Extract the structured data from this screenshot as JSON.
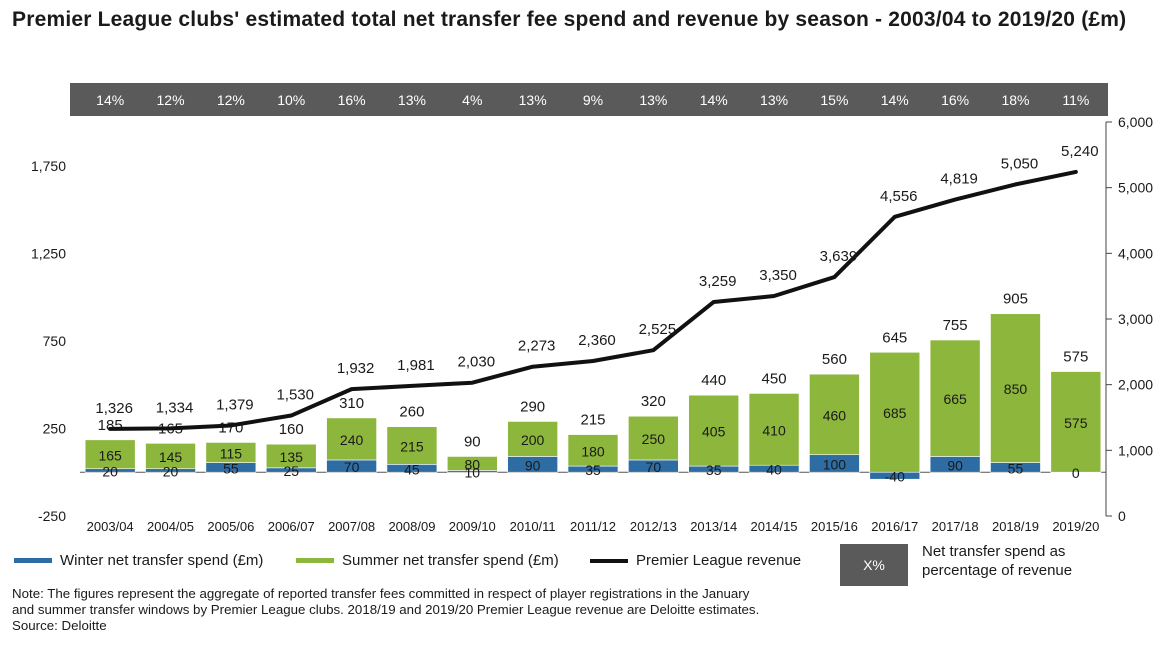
{
  "title": "Premier League clubs' estimated total net transfer fee spend and revenue by season - 2003/04 to 2019/20 (£m)",
  "colors": {
    "winter": "#2e6da4",
    "summer": "#8db63c",
    "revenue": "#111111",
    "pct_band": "#5a5a5a"
  },
  "legend": {
    "winter": "Winter net transfer spend (£m)",
    "summer": "Summer net transfer spend (£m)",
    "revenue": "Premier League revenue",
    "pct_marker": "X%",
    "pct_desc": "Net transfer spend as percentage of revenue"
  },
  "note": {
    "line1": "Note: The figures represent the aggregate of reported transfer fees committed in respect of player registrations in the January",
    "line2": "and summer transfer windows by Premier League clubs. 2018/19 and 2019/20 Premier League revenue are Deloitte estimates.",
    "line3": "Source: Deloitte"
  },
  "chart_data": {
    "type": "bar",
    "categories": [
      "2003/04",
      "2004/05",
      "2005/06",
      "2006/07",
      "2007/08",
      "2008/09",
      "2009/10",
      "2010/11",
      "2011/12",
      "2012/13",
      "2013/14",
      "2014/15",
      "2015/16",
      "2016/17",
      "2017/18",
      "2018/19",
      "2019/20"
    ],
    "series": [
      {
        "name": "Winter net transfer spend (£m)",
        "type": "bar",
        "values": [
          20,
          20,
          55,
          25,
          70,
          45,
          10,
          90,
          35,
          70,
          35,
          40,
          100,
          -40,
          90,
          55,
          0
        ]
      },
      {
        "name": "Summer net transfer spend (£m)",
        "type": "bar",
        "values": [
          165,
          145,
          115,
          135,
          240,
          215,
          80,
          200,
          180,
          250,
          405,
          410,
          460,
          685,
          665,
          850,
          575
        ]
      },
      {
        "name": "Premier League revenue",
        "type": "line",
        "axis": "right",
        "values": [
          1326,
          1334,
          1379,
          1530,
          1932,
          1981,
          2030,
          2273,
          2360,
          2525,
          3259,
          3350,
          3639,
          4556,
          4819,
          5050,
          5240
        ]
      }
    ],
    "totals": [
      185,
      165,
      170,
      160,
      310,
      260,
      90,
      290,
      215,
      320,
      440,
      450,
      560,
      645,
      755,
      905,
      575
    ],
    "pct_of_revenue": [
      "14%",
      "12%",
      "12%",
      "10%",
      "16%",
      "13%",
      "4%",
      "13%",
      "9%",
      "13%",
      "14%",
      "13%",
      "15%",
      "14%",
      "16%",
      "18%",
      "11%"
    ],
    "left_axis": {
      "range": [
        -250,
        2000
      ],
      "ticks": [
        -250,
        250,
        750,
        1250,
        1750
      ],
      "tick_labels": [
        "-250",
        "250",
        "750",
        "1,250",
        "1,750"
      ]
    },
    "right_axis": {
      "range": [
        0,
        6000
      ],
      "ticks": [
        0,
        1000,
        2000,
        3000,
        4000,
        5000,
        6000
      ],
      "tick_labels": [
        "0",
        "1,000",
        "2,000",
        "3,000",
        "4,000",
        "5,000",
        "6,000"
      ]
    },
    "grid": false,
    "legend_position": "bottom"
  }
}
